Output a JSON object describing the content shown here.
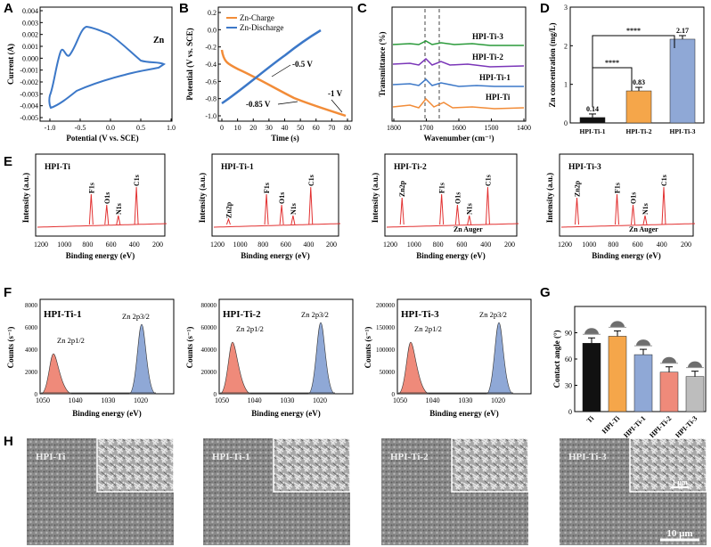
{
  "panel_labels": {
    "A": "A",
    "B": "B",
    "C": "C",
    "D": "D",
    "E": "E",
    "F": "F",
    "G": "G",
    "H": "H"
  },
  "A": {
    "ylabel": "Current (A)",
    "xlabel": "Potential (V vs. SCE)",
    "legend": "Zn",
    "xticks": [
      "-1.0",
      "-0.5",
      "0.0",
      "0.5",
      "1.0"
    ],
    "yticks": [
      "0.004",
      "0.003",
      "0.002",
      "0.001",
      "0.000",
      "-0.001",
      "-0.002",
      "-0.003",
      "-0.004",
      "-0.005"
    ]
  },
  "B": {
    "ylabel": "Potential (V vs. SCE)",
    "xlabel": "Time (s)",
    "legend": [
      "Zn-Charge",
      "Zn-Discharge"
    ],
    "colors": [
      "#f28c38",
      "#3c78c8"
    ],
    "xticks": [
      "0",
      "10",
      "20",
      "30",
      "40",
      "50",
      "60",
      "70",
      "80"
    ],
    "yticks": [
      "0.2",
      "0.0",
      "-0.2",
      "-0.4",
      "-0.6",
      "-0.8",
      "-1.0"
    ],
    "annotations": [
      "-0.5 V",
      "-0.85 V",
      "-1 V"
    ]
  },
  "C": {
    "ylabel": "Transmittance (%)",
    "xlabel": "Wavenumber (cm⁻¹)",
    "xticks": [
      "1800",
      "1700",
      "1600",
      "1500",
      "1400"
    ],
    "series": [
      "HPI-Ti-3",
      "HPI-Ti-2",
      "HPI-Ti-1",
      "HPI-Ti"
    ]
  },
  "D": {
    "ylabel": "Zn concentration (mg/L)",
    "categories": [
      "HPI-Ti-1",
      "HPI-Ti-2",
      "HPI-Ti-3"
    ],
    "values": [
      0.14,
      0.83,
      2.17
    ],
    "value_labels": [
      "0.14",
      "0.83",
      "2.17"
    ],
    "colors": [
      "#111111",
      "#f5a64a",
      "#8fa8d6"
    ],
    "yticks": [
      "0",
      "1",
      "2",
      "3"
    ],
    "sig": [
      "****",
      "****"
    ]
  },
  "E": {
    "ylabel": "Intensity (a.u.)",
    "xlabel": "Binding energy (eV)",
    "xticks": [
      "1200",
      "1000",
      "800",
      "600",
      "400",
      "200"
    ],
    "panels": [
      {
        "title": "HPI-Ti",
        "peaks": [
          "F1s",
          "O1s",
          "N1s",
          "C1s"
        ]
      },
      {
        "title": "HPI-Ti-1",
        "peaks": [
          "Zn2p",
          "F1s",
          "O1s",
          "N1s",
          "C1s"
        ]
      },
      {
        "title": "HPI-Ti-2",
        "peaks": [
          "Zn2p",
          "F1s",
          "O1s",
          "N1s",
          "C1s",
          "Zn Auger"
        ]
      },
      {
        "title": "HPI-Ti-3",
        "peaks": [
          "Zn2p",
          "F1s",
          "O1s",
          "N1s",
          "C1s",
          "Zn Auger"
        ]
      }
    ]
  },
  "F": {
    "ylabel": "Counts (s⁻¹)",
    "xlabel": "Binding energy (eV)",
    "xticks": [
      "1050",
      "1040",
      "1030",
      "1020"
    ],
    "panels": [
      {
        "title": "HPI-Ti-1",
        "yticks": [
          "0",
          "2000",
          "4000",
          "6000",
          "8000"
        ],
        "peaks": [
          "Zn 2p1/2",
          "Zn 2p3/2"
        ]
      },
      {
        "title": "HPI-Ti-2",
        "yticks": [
          "0",
          "20000",
          "40000",
          "60000",
          "80000"
        ],
        "peaks": [
          "Zn 2p1/2",
          "Zn 2p3/2"
        ]
      },
      {
        "title": "HPI-Ti-3",
        "yticks": [
          "0",
          "50000",
          "100000",
          "150000",
          "200000"
        ],
        "peaks": [
          "Zn 2p1/2",
          "Zn 2p3/2"
        ]
      }
    ]
  },
  "G": {
    "ylabel": "Contact angle (°)",
    "categories": [
      "Ti",
      "HPI-Ti",
      "HPI-Ti-1",
      "HPI-Ti-2",
      "HPI-Ti-3"
    ],
    "values": [
      78,
      86,
      65,
      45,
      40
    ],
    "colors": [
      "#111111",
      "#f5a64a",
      "#8fa8d6",
      "#ef8a7a",
      "#bdbdbd"
    ],
    "yticks": [
      "0",
      "30",
      "60",
      "90"
    ]
  },
  "H": {
    "panels": [
      "HPI-Ti",
      "HPI-Ti-1",
      "HPI-Ti-2",
      "HPI-Ti-3"
    ],
    "scale_big": "10 μm",
    "scale_small": "1 μm"
  },
  "chart_data": [
    {
      "type": "bar",
      "title": "D",
      "categories": [
        "HPI-Ti-1",
        "HPI-Ti-2",
        "HPI-Ti-3"
      ],
      "values": [
        0.14,
        0.83,
        2.17
      ],
      "ylabel": "Zn concentration (mg/L)",
      "ylim": [
        0,
        3
      ]
    },
    {
      "type": "bar",
      "title": "G",
      "categories": [
        "Ti",
        "HPI-Ti",
        "HPI-Ti-1",
        "HPI-Ti-2",
        "HPI-Ti-3"
      ],
      "values": [
        78,
        86,
        65,
        45,
        40
      ],
      "ylabel": "Contact angle (°)",
      "ylim": [
        0,
        120
      ]
    }
  ]
}
